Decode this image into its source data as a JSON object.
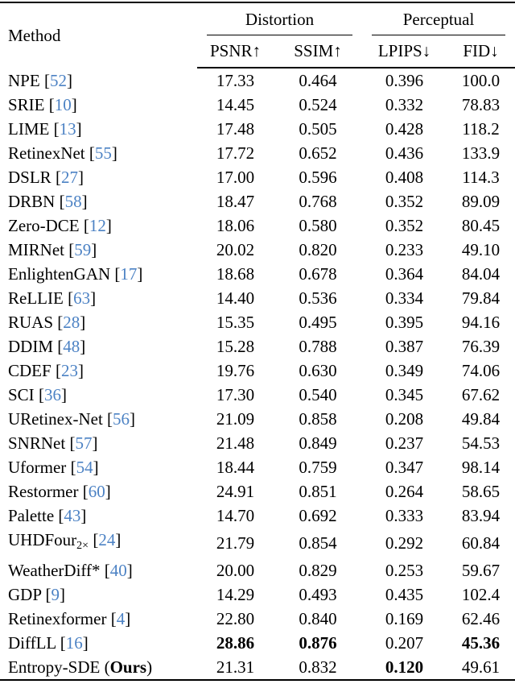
{
  "page": {
    "background": "#ffffff"
  },
  "colors": {
    "citation": "#4c82c4",
    "text": "#000000",
    "rule": "#000000"
  },
  "table": {
    "header": {
      "method_label": "Method",
      "groups": [
        {
          "label": "Distortion",
          "columns": [
            "PSNR↑",
            "SSIM↑"
          ]
        },
        {
          "label": "Perceptual",
          "columns": [
            "LPIPS↓",
            "FID↓"
          ]
        }
      ]
    },
    "rows": [
      {
        "method": [
          {
            "t": "text",
            "v": "NPE"
          }
        ],
        "cite": "52",
        "psnr": "17.33",
        "ssim": "0.464",
        "lpips": "0.396",
        "fid": "100.0",
        "bold": []
      },
      {
        "method": [
          {
            "t": "text",
            "v": "SRIE"
          }
        ],
        "cite": "10",
        "psnr": "14.45",
        "ssim": "0.524",
        "lpips": "0.332",
        "fid": "78.83",
        "bold": []
      },
      {
        "method": [
          {
            "t": "text",
            "v": "LIME"
          }
        ],
        "cite": "13",
        "psnr": "17.48",
        "ssim": "0.505",
        "lpips": "0.428",
        "fid": "118.2",
        "bold": []
      },
      {
        "method": [
          {
            "t": "text",
            "v": "RetinexNet"
          }
        ],
        "cite": "55",
        "psnr": "17.72",
        "ssim": "0.652",
        "lpips": "0.436",
        "fid": "133.9",
        "bold": []
      },
      {
        "method": [
          {
            "t": "text",
            "v": "DSLR"
          }
        ],
        "cite": "27",
        "psnr": "17.00",
        "ssim": "0.596",
        "lpips": "0.408",
        "fid": "114.3",
        "bold": []
      },
      {
        "method": [
          {
            "t": "text",
            "v": "DRBN"
          }
        ],
        "cite": "58",
        "psnr": "18.47",
        "ssim": "0.768",
        "lpips": "0.352",
        "fid": "89.09",
        "bold": []
      },
      {
        "method": [
          {
            "t": "text",
            "v": "Zero-DCE"
          }
        ],
        "cite": "12",
        "psnr": "18.06",
        "ssim": "0.580",
        "lpips": "0.352",
        "fid": "80.45",
        "bold": []
      },
      {
        "method": [
          {
            "t": "text",
            "v": "MIRNet"
          }
        ],
        "cite": "59",
        "psnr": "20.02",
        "ssim": "0.820",
        "lpips": "0.233",
        "fid": "49.10",
        "bold": []
      },
      {
        "method": [
          {
            "t": "text",
            "v": "EnlightenGAN"
          }
        ],
        "cite": "17",
        "psnr": "18.68",
        "ssim": "0.678",
        "lpips": "0.364",
        "fid": "84.04",
        "bold": []
      },
      {
        "method": [
          {
            "t": "text",
            "v": "ReLLIE"
          }
        ],
        "cite": "63",
        "psnr": "14.40",
        "ssim": "0.536",
        "lpips": "0.334",
        "fid": "79.84",
        "bold": []
      },
      {
        "method": [
          {
            "t": "text",
            "v": "RUAS"
          }
        ],
        "cite": "28",
        "psnr": "15.35",
        "ssim": "0.495",
        "lpips": "0.395",
        "fid": "94.16",
        "bold": []
      },
      {
        "method": [
          {
            "t": "text",
            "v": "DDIM"
          }
        ],
        "cite": "48",
        "psnr": "15.28",
        "ssim": "0.788",
        "lpips": "0.387",
        "fid": "76.39",
        "bold": []
      },
      {
        "method": [
          {
            "t": "text",
            "v": "CDEF"
          }
        ],
        "cite": "23",
        "psnr": "19.76",
        "ssim": "0.630",
        "lpips": "0.349",
        "fid": "74.06",
        "bold": []
      },
      {
        "method": [
          {
            "t": "text",
            "v": "SCI"
          }
        ],
        "cite": "36",
        "psnr": "17.30",
        "ssim": "0.540",
        "lpips": "0.345",
        "fid": "67.62",
        "bold": []
      },
      {
        "method": [
          {
            "t": "text",
            "v": "URetinex-Net"
          }
        ],
        "cite": "56",
        "psnr": "21.09",
        "ssim": "0.858",
        "lpips": "0.208",
        "fid": "49.84",
        "bold": []
      },
      {
        "method": [
          {
            "t": "text",
            "v": "SNRNet"
          }
        ],
        "cite": "57",
        "psnr": "21.48",
        "ssim": "0.849",
        "lpips": "0.237",
        "fid": "54.53",
        "bold": []
      },
      {
        "method": [
          {
            "t": "text",
            "v": "Uformer"
          }
        ],
        "cite": "54",
        "psnr": "18.44",
        "ssim": "0.759",
        "lpips": "0.347",
        "fid": "98.14",
        "bold": []
      },
      {
        "method": [
          {
            "t": "text",
            "v": "Restormer"
          }
        ],
        "cite": "60",
        "psnr": "24.91",
        "ssim": "0.851",
        "lpips": "0.264",
        "fid": "58.65",
        "bold": []
      },
      {
        "method": [
          {
            "t": "text",
            "v": "Palette"
          }
        ],
        "cite": "43",
        "psnr": "14.70",
        "ssim": "0.692",
        "lpips": "0.333",
        "fid": "83.94",
        "bold": []
      },
      {
        "method": [
          {
            "t": "text",
            "v": "UHDFour"
          },
          {
            "t": "sub",
            "v": "2×"
          }
        ],
        "cite": "24",
        "psnr": "21.79",
        "ssim": "0.854",
        "lpips": "0.292",
        "fid": "60.84",
        "bold": []
      },
      {
        "method": [
          {
            "t": "text",
            "v": "WeatherDiff*"
          }
        ],
        "cite": "40",
        "psnr": "20.00",
        "ssim": "0.829",
        "lpips": "0.253",
        "fid": "59.67",
        "bold": []
      },
      {
        "method": [
          {
            "t": "text",
            "v": "GDP"
          }
        ],
        "cite": "9",
        "psnr": "14.29",
        "ssim": "0.493",
        "lpips": "0.435",
        "fid": "102.4",
        "bold": []
      },
      {
        "method": [
          {
            "t": "text",
            "v": "Retinexformer"
          }
        ],
        "cite": "4",
        "psnr": "22.80",
        "ssim": "0.840",
        "lpips": "0.169",
        "fid": "62.46",
        "bold": []
      },
      {
        "method": [
          {
            "t": "text",
            "v": "DiffLL"
          }
        ],
        "cite": "16",
        "psnr": "28.86",
        "ssim": "0.876",
        "lpips": "0.207",
        "fid": "45.36",
        "bold": [
          "psnr",
          "ssim",
          "fid"
        ]
      },
      {
        "method": [
          {
            "t": "text",
            "v": "Entropy-SDE ("
          },
          {
            "t": "bold",
            "v": "Ours"
          },
          {
            "t": "text",
            "v": ")"
          }
        ],
        "cite": null,
        "psnr": "21.31",
        "ssim": "0.832",
        "lpips": "0.120",
        "fid": "49.61",
        "bold": [
          "lpips"
        ]
      }
    ]
  }
}
